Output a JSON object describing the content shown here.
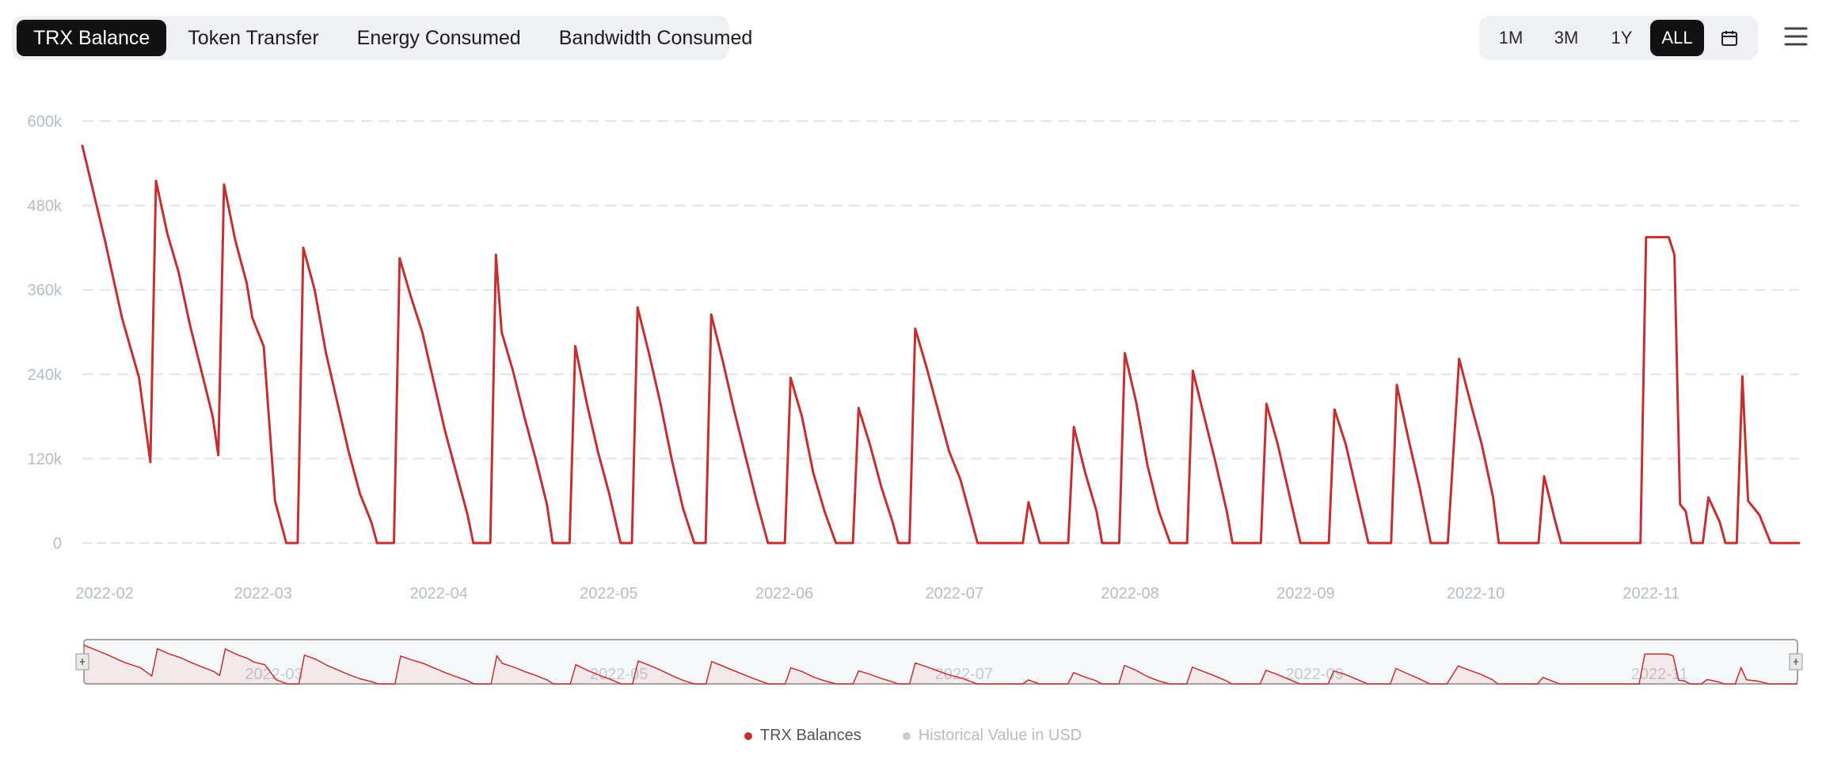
{
  "tabs": [
    {
      "label": "TRX Balance",
      "active": true
    },
    {
      "label": "Token Transfer",
      "active": false
    },
    {
      "label": "Energy Consumed",
      "active": false
    },
    {
      "label": "Bandwidth Consumed",
      "active": false
    }
  ],
  "ranges": [
    {
      "label": "1M",
      "active": false
    },
    {
      "label": "3M",
      "active": false
    },
    {
      "label": "1Y",
      "active": false
    },
    {
      "label": "ALL",
      "active": true
    }
  ],
  "icons": {
    "calendar": "calendar-icon",
    "menu": "hamburger-menu-icon"
  },
  "colors": {
    "line": "#c62f2f",
    "inactive_legend": "#cccccc",
    "active_tab": "#111111"
  },
  "chart_data": {
    "type": "line",
    "title": "",
    "xlabel": "",
    "ylabel": "",
    "ylim": [
      0,
      600000
    ],
    "y_ticks": [
      0,
      120000,
      240000,
      360000,
      480000,
      600000
    ],
    "y_tick_labels": [
      "0",
      "120k",
      "240k",
      "360k",
      "480k",
      "600k"
    ],
    "x_range": [
      "2022-02-01",
      "2022-12-01"
    ],
    "x_ticks": [
      "2022-02",
      "2022-03",
      "2022-04",
      "2022-05",
      "2022-06",
      "2022-07",
      "2022-08",
      "2022-09",
      "2022-10",
      "2022-11"
    ],
    "grid": "horizontal dashed",
    "legend_position": "bottom-center",
    "series": [
      {
        "name": "TRX Balances",
        "color": "#c62f2f",
        "points": [
          [
            "2022-02-01",
            565000
          ],
          [
            "2022-02-05",
            430000
          ],
          [
            "2022-02-08",
            320000
          ],
          [
            "2022-02-11",
            235000
          ],
          [
            "2022-02-12",
            175000
          ],
          [
            "2022-02-13",
            115000
          ],
          [
            "2022-02-14",
            515000
          ],
          [
            "2022-02-16",
            440000
          ],
          [
            "2022-02-18",
            385000
          ],
          [
            "2022-02-20",
            310000
          ],
          [
            "2022-02-22",
            245000
          ],
          [
            "2022-02-24",
            180000
          ],
          [
            "2022-02-25",
            125000
          ],
          [
            "2022-02-26",
            510000
          ],
          [
            "2022-02-28",
            430000
          ],
          [
            "2022-03-02",
            370000
          ],
          [
            "2022-03-03",
            320000
          ],
          [
            "2022-03-05",
            280000
          ],
          [
            "2022-03-07",
            60000
          ],
          [
            "2022-03-09",
            0
          ],
          [
            "2022-03-11",
            0
          ],
          [
            "2022-03-12",
            420000
          ],
          [
            "2022-03-14",
            360000
          ],
          [
            "2022-03-16",
            270000
          ],
          [
            "2022-03-18",
            200000
          ],
          [
            "2022-03-20",
            130000
          ],
          [
            "2022-03-22",
            70000
          ],
          [
            "2022-03-24",
            30000
          ],
          [
            "2022-03-25",
            0
          ],
          [
            "2022-03-28",
            0
          ],
          [
            "2022-03-29",
            405000
          ],
          [
            "2022-03-31",
            350000
          ],
          [
            "2022-04-02",
            300000
          ],
          [
            "2022-04-04",
            230000
          ],
          [
            "2022-04-06",
            160000
          ],
          [
            "2022-04-08",
            100000
          ],
          [
            "2022-04-10",
            40000
          ],
          [
            "2022-04-11",
            0
          ],
          [
            "2022-04-14",
            0
          ],
          [
            "2022-04-15",
            410000
          ],
          [
            "2022-04-16",
            300000
          ],
          [
            "2022-04-18",
            245000
          ],
          [
            "2022-04-20",
            180000
          ],
          [
            "2022-04-22",
            120000
          ],
          [
            "2022-04-24",
            55000
          ],
          [
            "2022-04-25",
            0
          ],
          [
            "2022-04-28",
            0
          ],
          [
            "2022-04-29",
            280000
          ],
          [
            "2022-05-01",
            200000
          ],
          [
            "2022-05-03",
            130000
          ],
          [
            "2022-05-05",
            70000
          ],
          [
            "2022-05-07",
            0
          ],
          [
            "2022-05-09",
            0
          ],
          [
            "2022-05-10",
            335000
          ],
          [
            "2022-05-12",
            270000
          ],
          [
            "2022-05-14",
            200000
          ],
          [
            "2022-05-16",
            120000
          ],
          [
            "2022-05-18",
            50000
          ],
          [
            "2022-05-20",
            0
          ],
          [
            "2022-05-22",
            0
          ],
          [
            "2022-05-23",
            325000
          ],
          [
            "2022-05-25",
            260000
          ],
          [
            "2022-05-27",
            190000
          ],
          [
            "2022-05-29",
            125000
          ],
          [
            "2022-05-31",
            60000
          ],
          [
            "2022-06-02",
            0
          ],
          [
            "2022-06-05",
            0
          ],
          [
            "2022-06-06",
            235000
          ],
          [
            "2022-06-08",
            180000
          ],
          [
            "2022-06-10",
            100000
          ],
          [
            "2022-06-12",
            45000
          ],
          [
            "2022-06-14",
            0
          ],
          [
            "2022-06-17",
            0
          ],
          [
            "2022-06-18",
            192000
          ],
          [
            "2022-06-20",
            140000
          ],
          [
            "2022-06-22",
            80000
          ],
          [
            "2022-06-24",
            30000
          ],
          [
            "2022-06-25",
            0
          ],
          [
            "2022-06-27",
            0
          ],
          [
            "2022-06-28",
            305000
          ],
          [
            "2022-06-30",
            250000
          ],
          [
            "2022-07-02",
            190000
          ],
          [
            "2022-07-04",
            130000
          ],
          [
            "2022-07-06",
            90000
          ],
          [
            "2022-07-08",
            30000
          ],
          [
            "2022-07-09",
            0
          ],
          [
            "2022-07-17",
            0
          ],
          [
            "2022-07-18",
            58000
          ],
          [
            "2022-07-20",
            0
          ],
          [
            "2022-07-25",
            0
          ],
          [
            "2022-07-26",
            165000
          ],
          [
            "2022-07-28",
            100000
          ],
          [
            "2022-07-30",
            45000
          ],
          [
            "2022-07-31",
            0
          ],
          [
            "2022-08-03",
            0
          ],
          [
            "2022-08-04",
            270000
          ],
          [
            "2022-08-06",
            200000
          ],
          [
            "2022-08-08",
            110000
          ],
          [
            "2022-08-10",
            45000
          ],
          [
            "2022-08-12",
            0
          ],
          [
            "2022-08-15",
            0
          ],
          [
            "2022-08-16",
            245000
          ],
          [
            "2022-08-18",
            180000
          ],
          [
            "2022-08-20",
            115000
          ],
          [
            "2022-08-22",
            45000
          ],
          [
            "2022-08-23",
            0
          ],
          [
            "2022-08-28",
            0
          ],
          [
            "2022-08-29",
            198000
          ],
          [
            "2022-08-31",
            140000
          ],
          [
            "2022-09-02",
            70000
          ],
          [
            "2022-09-04",
            0
          ],
          [
            "2022-09-09",
            0
          ],
          [
            "2022-09-10",
            190000
          ],
          [
            "2022-09-12",
            140000
          ],
          [
            "2022-09-14",
            70000
          ],
          [
            "2022-09-16",
            0
          ],
          [
            "2022-09-20",
            0
          ],
          [
            "2022-09-21",
            225000
          ],
          [
            "2022-09-23",
            150000
          ],
          [
            "2022-09-25",
            80000
          ],
          [
            "2022-09-27",
            0
          ],
          [
            "2022-09-30",
            0
          ],
          [
            "2022-10-02",
            262000
          ],
          [
            "2022-10-04",
            200000
          ],
          [
            "2022-10-06",
            140000
          ],
          [
            "2022-10-08",
            65000
          ],
          [
            "2022-10-09",
            0
          ],
          [
            "2022-10-16",
            0
          ],
          [
            "2022-10-17",
            95000
          ],
          [
            "2022-10-19",
            30000
          ],
          [
            "2022-10-20",
            0
          ],
          [
            "2022-11-03",
            0
          ],
          [
            "2022-11-04",
            435000
          ],
          [
            "2022-11-08",
            435000
          ],
          [
            "2022-11-09",
            410000
          ],
          [
            "2022-11-10",
            55000
          ],
          [
            "2022-11-11",
            45000
          ],
          [
            "2022-11-12",
            0
          ],
          [
            "2022-11-14",
            0
          ],
          [
            "2022-11-15",
            65000
          ],
          [
            "2022-11-17",
            30000
          ],
          [
            "2022-11-18",
            0
          ],
          [
            "2022-11-20",
            0
          ],
          [
            "2022-11-21",
            237000
          ],
          [
            "2022-11-22",
            60000
          ],
          [
            "2022-11-24",
            40000
          ],
          [
            "2022-11-26",
            0
          ],
          [
            "2022-12-01",
            0
          ]
        ]
      },
      {
        "name": "Historical Value in USD",
        "color": "#cccccc",
        "points": []
      }
    ],
    "navigator": {
      "x_ticks": [
        "2022-03",
        "2022-05",
        "2022-07",
        "2022-09",
        "2022-11"
      ]
    }
  }
}
